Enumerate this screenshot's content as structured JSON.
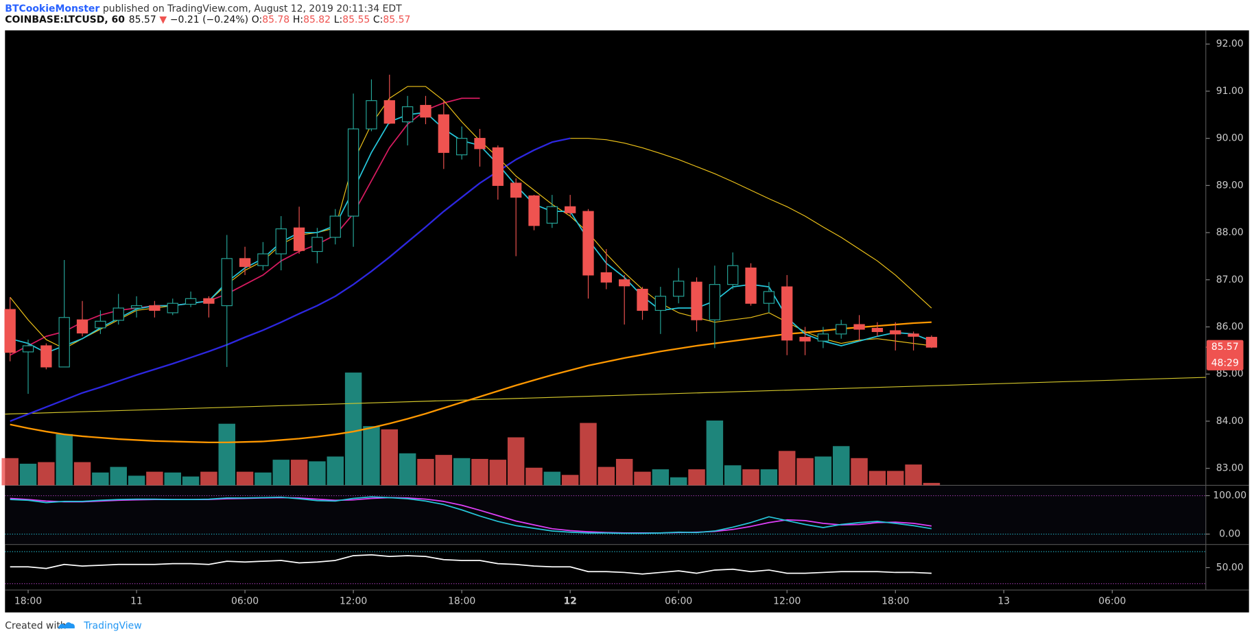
{
  "header": {
    "author": "BTCookieMonster",
    "published": "published on TradingView.com, August 12, 2019 20:11:34 EDT",
    "footer_prefix": "Created with",
    "footer_brand": "TradingView"
  },
  "chart_data": {
    "type": "candlestick",
    "title": "COINBASE:LTCUSD, 60",
    "legend": {
      "last": "85.57",
      "arrow": "▼",
      "change": "−0.21 (−0.24%)",
      "o_label": "O:",
      "o": "85.78",
      "h_label": "H:",
      "h": "85.82",
      "l_label": "L:",
      "l": "85.55",
      "c_label": "C:",
      "c": "85.57"
    },
    "last_price": 85.57,
    "countdown": "48:29",
    "up_color": "#26a69a",
    "down_color": "#ef5350",
    "xlim": [
      16.72,
      83.18
    ],
    "xticks": [
      {
        "value": 18,
        "label": "18:00"
      },
      {
        "value": 24,
        "label": "11"
      },
      {
        "value": 30,
        "label": "06:00"
      },
      {
        "value": 36,
        "label": "12:00"
      },
      {
        "value": 42,
        "label": "18:00"
      },
      {
        "value": 48,
        "label": "12"
      },
      {
        "value": 54,
        "label": "06:00"
      },
      {
        "value": 60,
        "label": "12:00"
      },
      {
        "value": 66,
        "label": "18:00"
      },
      {
        "value": 72,
        "label": "13"
      },
      {
        "value": 78,
        "label": "06:00"
      }
    ],
    "ylim": [
      82.64,
      92.29
    ],
    "yticks": [
      {
        "value": 83,
        "label": "83.00"
      },
      {
        "value": 84,
        "label": "84.00"
      },
      {
        "value": 85,
        "label": "85.00"
      },
      {
        "value": 86,
        "label": "86.00"
      },
      {
        "value": 87,
        "label": "87.00"
      },
      {
        "value": 88,
        "label": "88.00"
      },
      {
        "value": 89,
        "label": "89.00"
      },
      {
        "value": 90,
        "label": "90.00"
      },
      {
        "value": 91,
        "label": "91.00"
      },
      {
        "value": 92,
        "label": "92.00"
      }
    ],
    "grid": false,
    "x": [
      17,
      18,
      19,
      20,
      21,
      22,
      23,
      24,
      25,
      26,
      27,
      28,
      29,
      30,
      31,
      32,
      33,
      34,
      35,
      36,
      37,
      38,
      39,
      40,
      41,
      42,
      43,
      44,
      45,
      46,
      47,
      48,
      49,
      50,
      51,
      52,
      53,
      54,
      55,
      56,
      57,
      58,
      59,
      60,
      61,
      62,
      63,
      64,
      65,
      66,
      67,
      68
    ],
    "candles": {
      "open": [
        86.37,
        85.47,
        85.6,
        85.15,
        86.15,
        85.98,
        86.14,
        86.4,
        86.45,
        86.3,
        86.48,
        86.6,
        86.45,
        87.45,
        87.3,
        87.55,
        88.1,
        87.6,
        87.9,
        88.35,
        90.2,
        90.8,
        90.35,
        90.7,
        90.5,
        89.65,
        90.0,
        89.8,
        89.05,
        88.78,
        88.2,
        88.55,
        88.45,
        87.15,
        87.0,
        86.8,
        86.35,
        86.65,
        86.95,
        86.15,
        86.9,
        87.25,
        86.5,
        86.85,
        85.78,
        85.7,
        85.85,
        86.05,
        85.97,
        85.92,
        85.85,
        85.78
      ],
      "high": [
        86.63,
        85.73,
        85.65,
        87.42,
        86.55,
        86.35,
        86.7,
        86.65,
        86.55,
        86.6,
        86.75,
        86.65,
        87.95,
        87.7,
        87.8,
        88.35,
        88.55,
        88.1,
        88.5,
        90.95,
        91.25,
        91.35,
        90.9,
        90.9,
        90.8,
        90.25,
        90.2,
        89.85,
        89.15,
        88.8,
        88.8,
        88.8,
        88.5,
        87.65,
        87.1,
        86.85,
        86.85,
        87.25,
        87.05,
        87.3,
        87.58,
        87.35,
        86.95,
        87.1,
        86.0,
        86.0,
        86.15,
        86.25,
        86.1,
        86.1,
        85.9,
        85.82
      ],
      "low": [
        85.27,
        84.58,
        85.1,
        85.15,
        85.8,
        85.85,
        86.05,
        86.2,
        86.2,
        86.25,
        86.42,
        86.2,
        85.15,
        87.1,
        87.2,
        87.2,
        87.55,
        87.35,
        87.75,
        87.7,
        90.15,
        90.3,
        89.85,
        90.3,
        89.35,
        89.55,
        89.4,
        88.7,
        87.5,
        88.05,
        88.1,
        88.35,
        86.6,
        86.8,
        86.05,
        86.15,
        85.85,
        86.5,
        85.9,
        85.55,
        86.8,
        86.45,
        86.3,
        85.4,
        85.4,
        85.55,
        85.75,
        85.7,
        85.8,
        85.5,
        85.5,
        85.55
      ],
      "close": [
        85.46,
        85.6,
        85.15,
        86.2,
        85.87,
        86.12,
        86.4,
        86.45,
        86.35,
        86.5,
        86.6,
        86.5,
        87.45,
        87.28,
        87.55,
        88.08,
        87.62,
        87.9,
        88.35,
        90.2,
        90.8,
        90.32,
        90.67,
        90.45,
        89.7,
        90.0,
        89.78,
        89.0,
        88.75,
        88.15,
        88.55,
        88.42,
        87.1,
        86.95,
        86.87,
        86.35,
        86.65,
        86.97,
        86.15,
        86.9,
        87.3,
        86.5,
        86.75,
        85.72,
        85.7,
        85.85,
        86.05,
        85.95,
        85.9,
        85.85,
        85.8,
        85.57
      ]
    },
    "volume": {
      "ylim": [
        0,
        569
      ],
      "values": [
        34,
        27,
        29,
        64,
        29,
        16,
        23,
        12,
        17,
        16,
        11,
        17,
        77,
        17,
        16,
        32,
        32,
        30,
        36,
        141,
        74,
        70,
        40,
        33,
        38,
        34,
        33,
        32,
        60,
        22,
        17,
        13,
        78,
        23,
        33,
        17,
        20,
        10,
        20,
        81,
        25,
        20,
        20,
        43,
        34,
        36,
        49,
        34,
        18,
        18,
        26,
        3
      ]
    },
    "series": [
      {
        "color": "#f0c419",
        "width": 1,
        "values": [
          null,
          null,
          null,
          null,
          null,
          null,
          null,
          null,
          null,
          null,
          null,
          null,
          null,
          null,
          null,
          null,
          null,
          null,
          null,
          null,
          null,
          null,
          null,
          null,
          null,
          null,
          null,
          null,
          null,
          null,
          null,
          90.0,
          90.0,
          89.97,
          89.9,
          89.8,
          89.68,
          89.55,
          89.4,
          89.25,
          89.08,
          88.9,
          88.72,
          88.55,
          88.35,
          88.12,
          87.9,
          87.65,
          87.4,
          87.1,
          86.75,
          86.4
        ]
      },
      {
        "color": "#ff9800",
        "width": 2,
        "values": [
          83.93,
          83.85,
          83.78,
          83.72,
          83.68,
          83.65,
          83.62,
          83.6,
          83.58,
          83.57,
          83.56,
          83.55,
          83.55,
          83.56,
          83.57,
          83.6,
          83.63,
          83.67,
          83.72,
          83.78,
          83.86,
          83.95,
          84.05,
          84.16,
          84.28,
          84.4,
          84.52,
          84.64,
          84.76,
          84.87,
          84.98,
          85.08,
          85.18,
          85.26,
          85.34,
          85.41,
          85.48,
          85.54,
          85.6,
          85.65,
          85.7,
          85.75,
          85.8,
          85.85,
          85.88,
          85.92,
          85.96,
          85.99,
          86.02,
          86.05,
          86.08,
          86.1
        ]
      },
      {
        "color": "#2d27e0",
        "width": 2,
        "values": [
          84.0,
          84.15,
          84.3,
          84.45,
          84.6,
          84.72,
          84.85,
          84.98,
          85.1,
          85.22,
          85.35,
          85.48,
          85.62,
          85.78,
          85.93,
          86.1,
          86.28,
          86.45,
          86.65,
          86.9,
          87.18,
          87.48,
          87.8,
          88.12,
          88.45,
          88.75,
          89.05,
          89.3,
          89.55,
          89.75,
          89.92,
          90.0,
          null,
          null,
          null,
          null,
          null,
          null,
          null,
          null,
          null,
          null,
          null,
          null,
          null,
          null,
          null,
          null,
          null,
          null,
          null,
          null
        ]
      },
      {
        "color": "#d81b60",
        "width": 1.5,
        "values": [
          85.4,
          85.6,
          85.8,
          85.9,
          86.1,
          86.25,
          86.35,
          86.4,
          86.45,
          86.45,
          86.5,
          86.55,
          86.7,
          86.9,
          87.1,
          87.4,
          87.6,
          87.75,
          87.95,
          88.4,
          89.1,
          89.8,
          90.3,
          90.6,
          90.75,
          90.85,
          90.85,
          null,
          null,
          null,
          null,
          null,
          null,
          null,
          null,
          null,
          null,
          null,
          null,
          null,
          null,
          null,
          null,
          null,
          null,
          null,
          null,
          null,
          null,
          null,
          null,
          null
        ]
      },
      {
        "color": "#f0c419",
        "width": 1,
        "values": [
          86.63,
          86.15,
          85.73,
          85.54,
          85.75,
          85.95,
          86.15,
          86.35,
          86.4,
          86.45,
          86.5,
          86.55,
          86.9,
          87.2,
          87.4,
          87.75,
          87.95,
          88.0,
          88.1,
          89.5,
          90.3,
          90.85,
          91.1,
          91.1,
          90.8,
          90.35,
          89.95,
          89.6,
          89.2,
          88.9,
          88.6,
          88.35,
          88.0,
          87.55,
          87.15,
          86.8,
          86.5,
          86.3,
          86.2,
          86.1,
          86.15,
          86.2,
          86.3,
          86.1,
          85.9,
          85.75,
          85.65,
          85.72,
          85.75,
          85.7,
          85.65,
          85.6
        ]
      },
      {
        "color": "#26c6da",
        "width": 1.5,
        "values": [
          85.75,
          85.65,
          85.45,
          85.6,
          85.75,
          85.98,
          86.18,
          86.38,
          86.45,
          86.45,
          86.5,
          86.55,
          86.95,
          87.25,
          87.45,
          87.8,
          88.0,
          88.0,
          88.15,
          88.9,
          89.7,
          90.35,
          90.5,
          90.55,
          90.2,
          89.95,
          89.85,
          89.45,
          89.0,
          88.6,
          88.45,
          88.45,
          87.85,
          87.35,
          87.05,
          86.65,
          86.35,
          86.4,
          86.4,
          86.55,
          86.85,
          86.9,
          86.85,
          86.2,
          85.85,
          85.7,
          85.6,
          85.7,
          85.8,
          85.88,
          85.85,
          85.7
        ]
      }
    ],
    "trendline": {
      "color": "#d4c72b",
      "x": [
        16.72,
        83.18
      ],
      "values": [
        84.15,
        84.93
      ]
    },
    "stoch": {
      "ylim": [
        -27,
        127
      ],
      "yticks": [
        {
          "value": 0,
          "label": "0.00"
        },
        {
          "value": 100,
          "label": "100.00"
        }
      ],
      "series": [
        {
          "color": "#e040fb",
          "values": [
            93,
            90,
            86,
            84,
            84,
            86,
            88,
            89,
            90,
            90,
            90,
            90,
            92,
            93,
            94,
            95,
            94,
            91,
            88,
            89,
            93,
            95,
            94,
            91,
            85,
            75,
            62,
            48,
            34,
            24,
            14,
            9,
            6,
            4,
            3,
            3,
            3,
            4,
            5,
            7,
            12,
            20,
            30,
            37,
            35,
            28,
            24,
            25,
            30,
            31,
            28,
            21
          ]
        },
        {
          "color": "#26c6da",
          "values": [
            90,
            88,
            82,
            85,
            85,
            88,
            90,
            91,
            91,
            90,
            90,
            91,
            94,
            94,
            95,
            96,
            92,
            87,
            86,
            93,
            97,
            95,
            92,
            86,
            77,
            63,
            47,
            33,
            22,
            15,
            8,
            5,
            3,
            3,
            2,
            2,
            3,
            5,
            4,
            8,
            18,
            30,
            45,
            35,
            25,
            17,
            25,
            30,
            33,
            28,
            22,
            14
          ]
        }
      ]
    },
    "rsi": {
      "ylim": [
        22,
        79
      ],
      "yticks": [
        {
          "value": 50,
          "label": "50.00"
        }
      ],
      "bands": [
        70,
        30
      ],
      "color": "#ffffff",
      "values": [
        51,
        51,
        49,
        54,
        52,
        53,
        54,
        54,
        54,
        55,
        55,
        54,
        58,
        57,
        58,
        59,
        56,
        57,
        59,
        65,
        66,
        64,
        65,
        64,
        60,
        59,
        59,
        55,
        54,
        52,
        51,
        51,
        45,
        45,
        44,
        42,
        44,
        46,
        43,
        47,
        48,
        45,
        47,
        43,
        43,
        44,
        45,
        45,
        45,
        44,
        44,
        43
      ]
    }
  }
}
